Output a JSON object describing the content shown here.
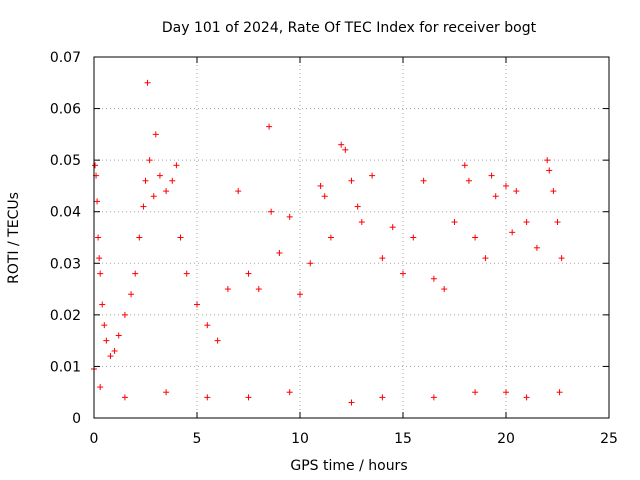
{
  "chart_data": {
    "type": "scatter",
    "title": "Day 101 of 2024, Rate Of TEC Index for receiver bogt",
    "xlabel": "GPS time / hours",
    "ylabel": "ROTI / TECUs",
    "xlim": [
      0,
      25
    ],
    "ylim": [
      0,
      0.07
    ],
    "xticks": [
      "0",
      "5",
      "10",
      "15",
      "20",
      "25"
    ],
    "yticks": [
      "0",
      "0.01",
      "0.02",
      "0.03",
      "0.04",
      "0.05",
      "0.06",
      "0.07"
    ],
    "grid": true,
    "marker": "plus",
    "color": "#ff0000",
    "series": [
      {
        "points": [
          [
            0.0,
            0.0095
          ],
          [
            0.05,
            0.049
          ],
          [
            0.1,
            0.047
          ],
          [
            0.15,
            0.042
          ],
          [
            0.2,
            0.035
          ],
          [
            0.25,
            0.031
          ],
          [
            0.3,
            0.028
          ],
          [
            0.4,
            0.022
          ],
          [
            0.5,
            0.018
          ],
          [
            0.6,
            0.015
          ],
          [
            0.8,
            0.012
          ],
          [
            1.0,
            0.013
          ],
          [
            1.2,
            0.016
          ],
          [
            1.5,
            0.02
          ],
          [
            1.8,
            0.024
          ],
          [
            2.0,
            0.028
          ],
          [
            2.2,
            0.035
          ],
          [
            2.4,
            0.041
          ],
          [
            2.5,
            0.046
          ],
          [
            2.6,
            0.065
          ],
          [
            2.7,
            0.05
          ],
          [
            2.9,
            0.043
          ],
          [
            3.0,
            0.055
          ],
          [
            3.2,
            0.047
          ],
          [
            3.5,
            0.044
          ],
          [
            3.8,
            0.046
          ],
          [
            4.0,
            0.049
          ],
          [
            4.2,
            0.035
          ],
          [
            4.5,
            0.028
          ],
          [
            5.0,
            0.022
          ],
          [
            5.5,
            0.018
          ],
          [
            6.0,
            0.015
          ],
          [
            6.5,
            0.025
          ],
          [
            7.0,
            0.044
          ],
          [
            7.5,
            0.028
          ],
          [
            8.0,
            0.025
          ],
          [
            8.5,
            0.0565
          ],
          [
            8.6,
            0.04
          ],
          [
            9.0,
            0.032
          ],
          [
            9.5,
            0.039
          ],
          [
            10.0,
            0.024
          ],
          [
            10.5,
            0.03
          ],
          [
            11.0,
            0.045
          ],
          [
            11.2,
            0.043
          ],
          [
            11.5,
            0.035
          ],
          [
            12.0,
            0.053
          ],
          [
            12.2,
            0.052
          ],
          [
            12.5,
            0.046
          ],
          [
            12.8,
            0.041
          ],
          [
            13.0,
            0.038
          ],
          [
            13.5,
            0.047
          ],
          [
            14.0,
            0.031
          ],
          [
            14.5,
            0.037
          ],
          [
            15.0,
            0.028
          ],
          [
            15.5,
            0.035
          ],
          [
            16.0,
            0.046
          ],
          [
            16.5,
            0.027
          ],
          [
            17.0,
            0.025
          ],
          [
            17.5,
            0.038
          ],
          [
            18.0,
            0.049
          ],
          [
            18.2,
            0.046
          ],
          [
            18.5,
            0.035
          ],
          [
            19.0,
            0.031
          ],
          [
            19.3,
            0.047
          ],
          [
            19.5,
            0.043
          ],
          [
            20.0,
            0.045
          ],
          [
            20.3,
            0.036
          ],
          [
            20.5,
            0.044
          ],
          [
            21.0,
            0.038
          ],
          [
            21.5,
            0.033
          ],
          [
            22.0,
            0.05
          ],
          [
            22.1,
            0.048
          ],
          [
            22.3,
            0.044
          ],
          [
            22.5,
            0.038
          ],
          [
            22.7,
            0.031
          ],
          [
            0.3,
            0.006
          ],
          [
            1.5,
            0.004
          ],
          [
            3.5,
            0.005
          ],
          [
            5.5,
            0.004
          ],
          [
            7.5,
            0.004
          ],
          [
            9.5,
            0.005
          ],
          [
            12.5,
            0.003
          ],
          [
            14.0,
            0.004
          ],
          [
            16.5,
            0.004
          ],
          [
            18.5,
            0.005
          ],
          [
            20.0,
            0.005
          ],
          [
            21.0,
            0.004
          ],
          [
            22.6,
            0.005
          ]
        ]
      }
    ]
  }
}
